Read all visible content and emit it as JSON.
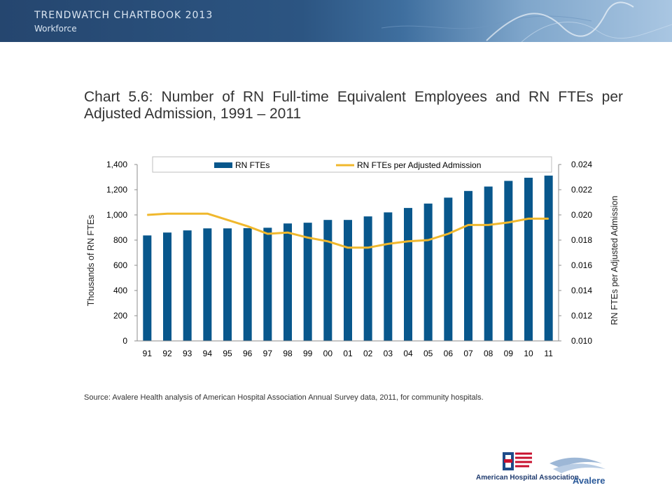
{
  "header": {
    "title": "TRENDWATCH CHARTBOOK 2013",
    "subtitle": "Workforce"
  },
  "chart_title": "Chart 5.6: Number of RN Full-time Equivalent Employees and RN FTEs per Adjusted Admission, 1991 – 2011",
  "source": "Source: Avalere Health analysis of American Hospital Association Annual Survey data, 2011, for community hospitals.",
  "colors": {
    "bar": "#08578c",
    "line": "#f0b82d",
    "banner": "#2c5582"
  },
  "logos": {
    "aha": "American Hospital Association",
    "avalere": "Avalere"
  },
  "chart_data": {
    "type": "bar",
    "categories": [
      "91",
      "92",
      "93",
      "94",
      "95",
      "96",
      "97",
      "98",
      "99",
      "00",
      "01",
      "02",
      "03",
      "04",
      "05",
      "06",
      "07",
      "08",
      "09",
      "10",
      "11"
    ],
    "series": [
      {
        "name": "RN FTEs",
        "type": "bar",
        "axis": "left",
        "values": [
          837,
          860,
          877,
          893,
          893,
          895,
          898,
          932,
          938,
          960,
          960,
          988,
          1020,
          1055,
          1090,
          1137,
          1190,
          1225,
          1270,
          1295,
          1312
        ]
      },
      {
        "name": "RN FTEs per Adjusted Admission",
        "type": "line",
        "axis": "right",
        "values": [
          0.02,
          0.0201,
          0.0201,
          0.0201,
          0.0196,
          0.0191,
          0.0185,
          0.0186,
          0.0182,
          0.0179,
          0.0174,
          0.0174,
          0.0177,
          0.0179,
          0.018,
          0.0185,
          0.0192,
          0.0192,
          0.0194,
          0.0197,
          0.0197
        ]
      }
    ],
    "ylabel": "Thousands of RN FTEs",
    "y2label": "RN FTEs per Adjusted Admission",
    "ylim": [
      0,
      1400
    ],
    "y2lim": [
      0.01,
      0.024
    ],
    "yticks": [
      "0",
      "200",
      "400",
      "600",
      "800",
      "1,000",
      "1,200",
      "1,400"
    ],
    "y2ticks": [
      "0.010",
      "0.012",
      "0.014",
      "0.016",
      "0.018",
      "0.020",
      "0.022",
      "0.024"
    ],
    "legend": "top",
    "grid": false
  }
}
